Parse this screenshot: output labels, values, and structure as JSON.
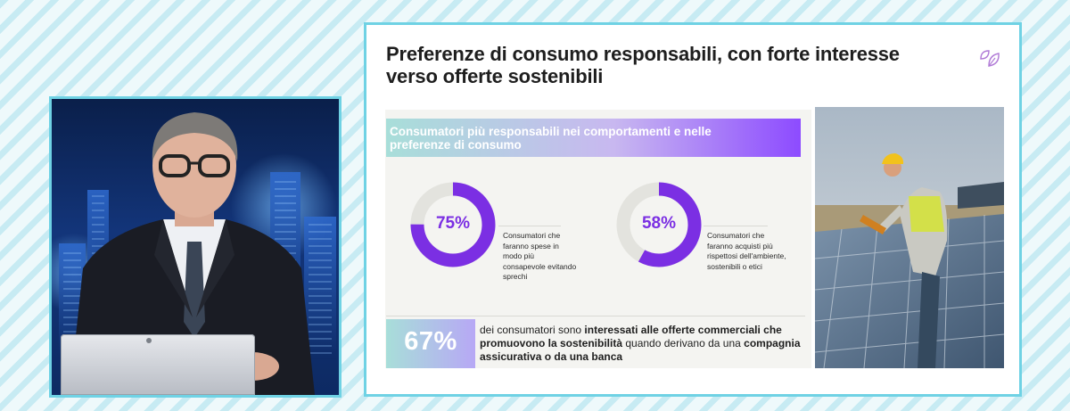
{
  "slide": {
    "title": "Preferenze di consumo responsabili, con forte interesse verso offerte sostenibili",
    "banner": "Consumatori più responsabili nei comportamenti e nelle preferenze di consumo",
    "stats": [
      {
        "percent": "75%",
        "value": 75,
        "description": "Consumatori che faranno spese in modo più consapevole evitando sprechi"
      },
      {
        "percent": "58%",
        "value": 58,
        "description": "Consumatori che faranno acquisti più rispettosi dell'ambiente, sostenibili o etici"
      }
    ],
    "highlight": {
      "percent": "67%",
      "text_pre": "dei consumatori sono ",
      "text_bold1": "interessati alle offerte commerciali che promuovono la sostenibilità",
      "text_mid": " quando derivano da una ",
      "text_bold2": "compagnia assicurativa o da una banca"
    }
  },
  "colors": {
    "accent": "#7b2fe3",
    "frame": "#6fd2e4",
    "donut_track": "#e3e3de"
  },
  "icons": {
    "brand": "leaf-icon"
  }
}
